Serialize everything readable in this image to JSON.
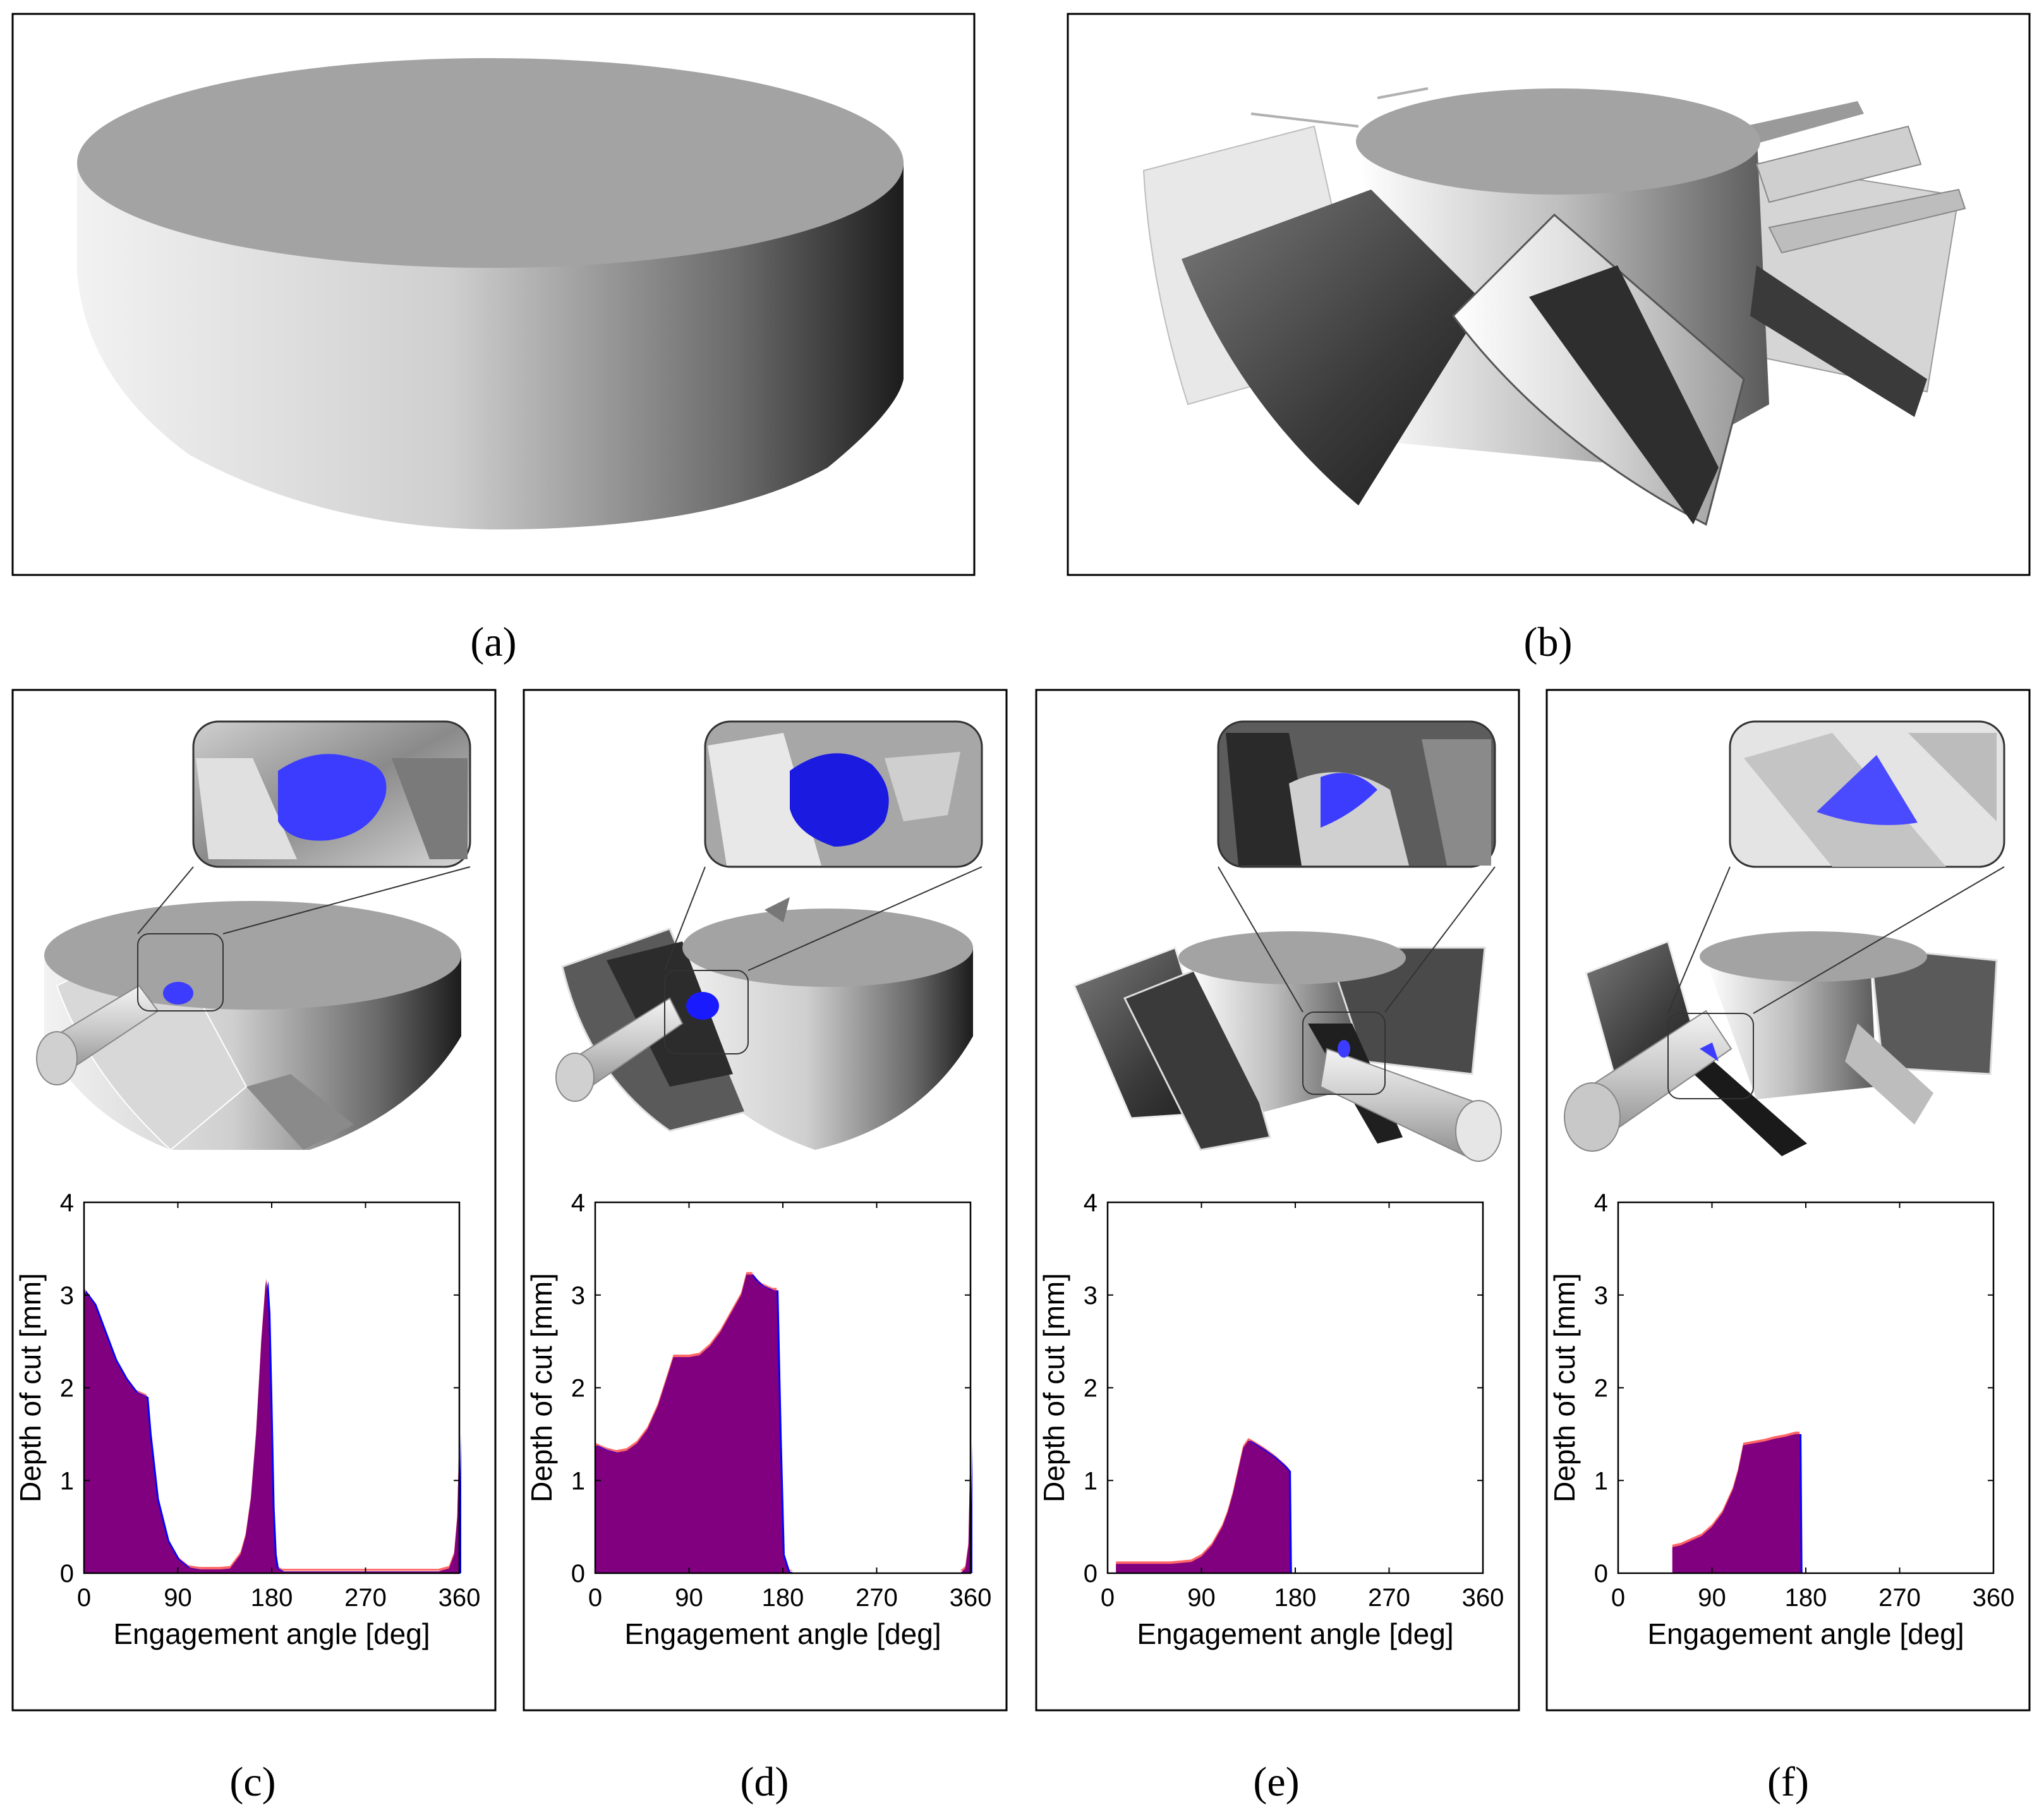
{
  "captions": {
    "a": "(a)",
    "b": "(b)",
    "c": "(c)",
    "d": "(d)",
    "e": "(e)",
    "f": "(f)"
  },
  "colors": {
    "frame": "#000000",
    "background": "#ffffff",
    "engagement_fill": "#800080",
    "engagement_blue": "#0000ff",
    "engagement_red": "#ff6666",
    "highlight_blue": "#3c3cff"
  },
  "chart_data": [
    {
      "panel": "c",
      "type": "area",
      "xlabel": "Engagement angle [deg]",
      "ylabel": "Depth of cut [mm]",
      "xlim": [
        0,
        360
      ],
      "ylim": [
        0,
        4
      ],
      "xticks": [
        0,
        90,
        180,
        270,
        360
      ],
      "yticks": [
        0,
        1,
        2,
        3,
        4
      ],
      "x": [
        0,
        10,
        20,
        30,
        40,
        50,
        60,
        63,
        70,
        80,
        90,
        100,
        110,
        120,
        130,
        140,
        150,
        155,
        160,
        165,
        170,
        174,
        175,
        177,
        179,
        181,
        183,
        185,
        190,
        200,
        250,
        300,
        340,
        350,
        355,
        358,
        360
      ],
      "values": [
        3.05,
        2.9,
        2.6,
        2.3,
        2.1,
        1.95,
        1.9,
        1.5,
        0.8,
        0.35,
        0.15,
        0.06,
        0.04,
        0.04,
        0.04,
        0.05,
        0.2,
        0.4,
        0.8,
        1.5,
        2.5,
        3.1,
        3.15,
        2.8,
        1.8,
        0.7,
        0.2,
        0.05,
        0.02,
        0.02,
        0.02,
        0.02,
        0.02,
        0.05,
        0.2,
        0.6,
        1.5
      ]
    },
    {
      "panel": "d",
      "type": "area",
      "xlabel": "Engagement angle [deg]",
      "ylabel": "Depth of cut [mm]",
      "xlim": [
        0,
        360
      ],
      "ylim": [
        0,
        4
      ],
      "xticks": [
        0,
        90,
        180,
        270,
        360
      ],
      "yticks": [
        0,
        1,
        2,
        3,
        4
      ],
      "x": [
        0,
        10,
        20,
        30,
        40,
        50,
        60,
        70,
        75,
        80,
        90,
        100,
        110,
        120,
        130,
        140,
        145,
        150,
        155,
        160,
        170,
        174,
        177,
        180,
        185,
        190,
        350,
        355,
        358,
        360
      ],
      "values": [
        1.38,
        1.33,
        1.3,
        1.32,
        1.4,
        1.55,
        1.8,
        2.15,
        2.33,
        2.33,
        2.33,
        2.35,
        2.45,
        2.6,
        2.8,
        3.0,
        3.22,
        3.22,
        3.15,
        3.1,
        3.05,
        3.05,
        1.5,
        0.2,
        0.02,
        0.0,
        0.0,
        0.05,
        0.3,
        1.4
      ]
    },
    {
      "panel": "e",
      "type": "area",
      "xlabel": "Engagement angle [deg]",
      "ylabel": "Depth of cut [mm]",
      "xlim": [
        0,
        360
      ],
      "ylim": [
        0,
        4
      ],
      "xticks": [
        0,
        90,
        180,
        270,
        360
      ],
      "yticks": [
        0,
        1,
        2,
        3,
        4
      ],
      "x": [
        8,
        30,
        60,
        80,
        90,
        100,
        110,
        115,
        120,
        125,
        130,
        135,
        140,
        150,
        160,
        170,
        174,
        175
      ],
      "values": [
        0.1,
        0.1,
        0.1,
        0.12,
        0.18,
        0.3,
        0.5,
        0.65,
        0.85,
        1.1,
        1.35,
        1.43,
        1.4,
        1.33,
        1.25,
        1.15,
        1.1,
        0.0
      ]
    },
    {
      "panel": "f",
      "type": "area",
      "xlabel": "Engagement angle [deg]",
      "ylabel": "Depth of cut [mm]",
      "xlim": [
        0,
        360
      ],
      "ylim": [
        0,
        4
      ],
      "xticks": [
        0,
        90,
        180,
        270,
        360
      ],
      "yticks": [
        0,
        1,
        2,
        3,
        4
      ],
      "x": [
        52,
        60,
        70,
        80,
        90,
        100,
        110,
        115,
        120,
        130,
        140,
        150,
        160,
        170,
        174,
        175
      ],
      "values": [
        0.28,
        0.3,
        0.35,
        0.4,
        0.5,
        0.65,
        0.9,
        1.1,
        1.38,
        1.4,
        1.42,
        1.45,
        1.47,
        1.5,
        1.5,
        0.0
      ]
    }
  ]
}
